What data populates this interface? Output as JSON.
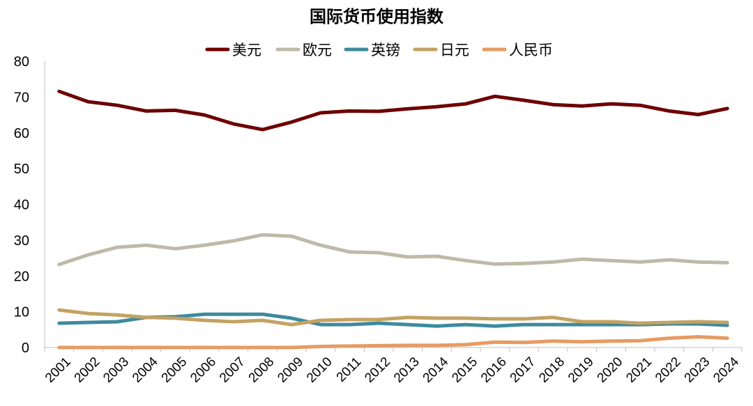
{
  "chart_data": {
    "type": "line",
    "title": "国际货币使用指数",
    "xlabel": "",
    "ylabel": "",
    "ylim": [
      0,
      80
    ],
    "yticks": [
      0,
      10,
      20,
      30,
      40,
      50,
      60,
      70,
      80
    ],
    "grid": false,
    "legend_placement": "top",
    "categories": [
      "2001",
      "2002",
      "2003",
      "2004",
      "2005",
      "2006",
      "2007",
      "2008",
      "2009",
      "2010",
      "2011",
      "2012",
      "2013",
      "2014",
      "2015",
      "2016",
      "2017",
      "2018",
      "2019",
      "2020",
      "2021",
      "2022",
      "2023",
      "2024"
    ],
    "series": [
      {
        "name": "美元",
        "color": "#6e0000",
        "values": [
          71.6,
          68.7,
          67.7,
          66.1,
          66.3,
          65.0,
          62.5,
          60.9,
          63.0,
          65.6,
          66.1,
          66.0,
          66.7,
          67.3,
          68.1,
          70.2,
          69.1,
          67.9,
          67.5,
          68.1,
          67.7,
          66.1,
          65.1,
          66.8
        ]
      },
      {
        "name": "欧元",
        "color": "#bdbaa8",
        "values": [
          23.2,
          25.9,
          28.0,
          28.6,
          27.6,
          28.6,
          29.8,
          31.5,
          31.1,
          28.6,
          26.7,
          26.5,
          25.3,
          25.5,
          24.3,
          23.3,
          23.5,
          23.9,
          24.7,
          24.3,
          23.9,
          24.5,
          23.9,
          23.7
        ]
      },
      {
        "name": "英镑",
        "color": "#3e8a9e",
        "values": [
          6.8,
          7.0,
          7.2,
          8.4,
          8.6,
          9.3,
          9.3,
          9.3,
          8.2,
          6.4,
          6.4,
          6.8,
          6.4,
          6.0,
          6.4,
          6.0,
          6.4,
          6.4,
          6.4,
          6.4,
          6.4,
          6.6,
          6.6,
          6.2
        ]
      },
      {
        "name": "日元",
        "color": "#c4a262",
        "values": [
          10.5,
          9.5,
          9.1,
          8.4,
          8.2,
          7.6,
          7.2,
          7.6,
          6.4,
          7.6,
          7.8,
          7.8,
          8.4,
          8.2,
          8.2,
          8.0,
          8.0,
          8.4,
          7.2,
          7.2,
          6.8,
          7.0,
          7.2,
          7.0
        ]
      },
      {
        "name": "人民币",
        "color": "#e69b63",
        "values": [
          0,
          0,
          0,
          0,
          0,
          0,
          0,
          0,
          0,
          0.3,
          0.4,
          0.5,
          0.6,
          0.6,
          0.8,
          1.5,
          1.4,
          1.8,
          1.6,
          1.8,
          1.9,
          2.6,
          3.0,
          2.6
        ]
      }
    ]
  }
}
